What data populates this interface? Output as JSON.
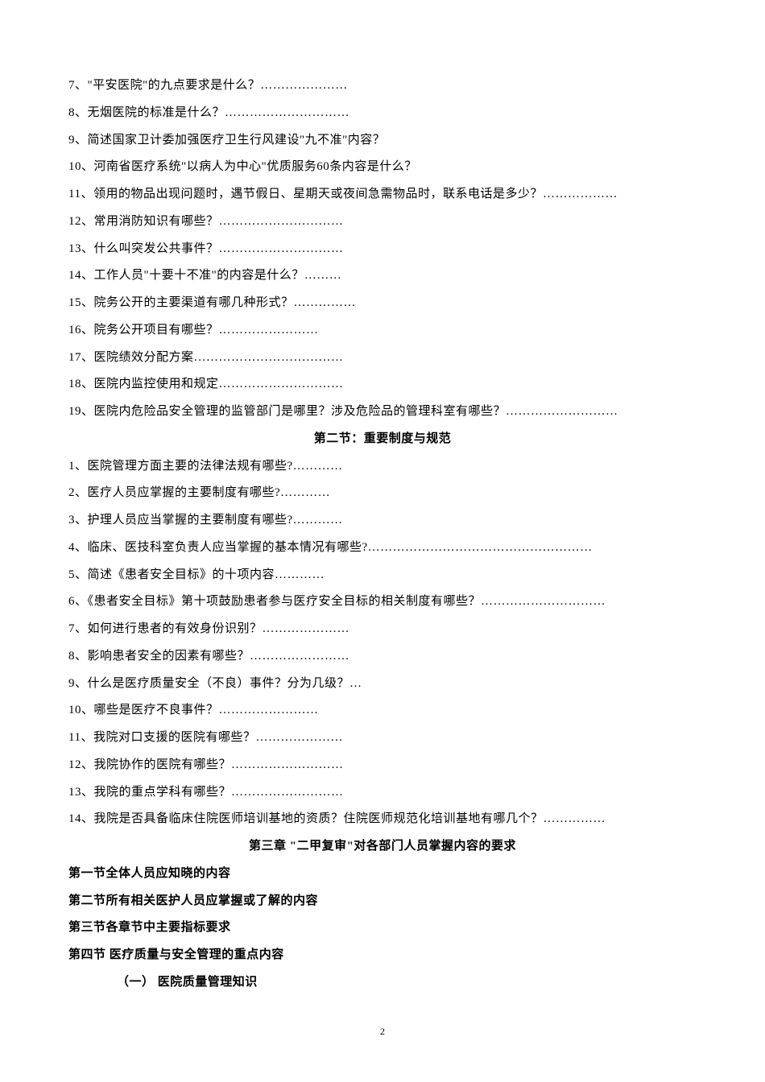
{
  "toc1": {
    "items": [
      "7、\"平安医院\"的九点要求是什么？…………………",
      "8、无烟医院的标准是什么？…………………………",
      "9、简述国家卫计委加强医疗卫生行风建设\"九不准\"内容？",
      "10、河南省医疗系统\"以病人为中心\"优质服务60条内容是什么？",
      "11、领用的物品出现问题时，遇节假日、星期天或夜间急需物品时，联系电话是多少？………………",
      "12、常用消防知识有哪些？…………………………",
      "13、什么叫突发公共事件？…………………………",
      "14、工作人员\"十要十不准\"的内容是什么？………",
      "15、院务公开的主要渠道有哪几种形式？……………",
      "16、院务公开项目有哪些？……………………",
      "17、医院绩效分配方案………………………………",
      "18、医院内监控使用和规定…………………………",
      "19、医院内危险品安全管理的监管部门是哪里？涉及危险品的管理科室有哪些？………………………"
    ]
  },
  "section2": {
    "title": "第二节：重要制度与规范",
    "items": [
      "1、医院管理方面主要的法律法规有哪些?…………",
      "2、医疗人员应掌握的主要制度有哪些?…………",
      "3、护理人员应当掌握的主要制度有哪些?…………",
      "4、临床、医技科室负责人应当掌握的基本情况有哪些?………………………………………………",
      "5、简述《患者安全目标》的十项内容…………",
      "6、《患者安全目标》第十项鼓励患者参与医疗安全目标的相关制度有哪些？…………………………",
      "7、如何进行患者的有效身份识别？…………………",
      "8、影响患者安全的因素有哪些？……………………",
      "9、什么是医疗质量安全（不良）事件？分为几级？…",
      "10、哪些是医疗不良事件？……………………",
      "11、我院对口支援的医院有哪些？…………………",
      "12、我院协作的医院有哪些？………………………",
      "13、我院的重点学科有哪些？………………………",
      "14、我院是否具备临床住院医师培训基地的资质？住院医师规范化培训基地有哪几个？……………"
    ]
  },
  "chapter3": {
    "title": "第三章 \"二甲复审\"对各部门人员掌握内容的要求",
    "sections": [
      "第一节全体人员应知晓的内容",
      "第二节所有相关医护人员应掌握或了解的内容",
      "第三节各章节中主要指标要求",
      "第四节  医疗质量与安全管理的重点内容"
    ],
    "sub": "（一） 医院质量管理知识"
  },
  "pageNumber": "2"
}
